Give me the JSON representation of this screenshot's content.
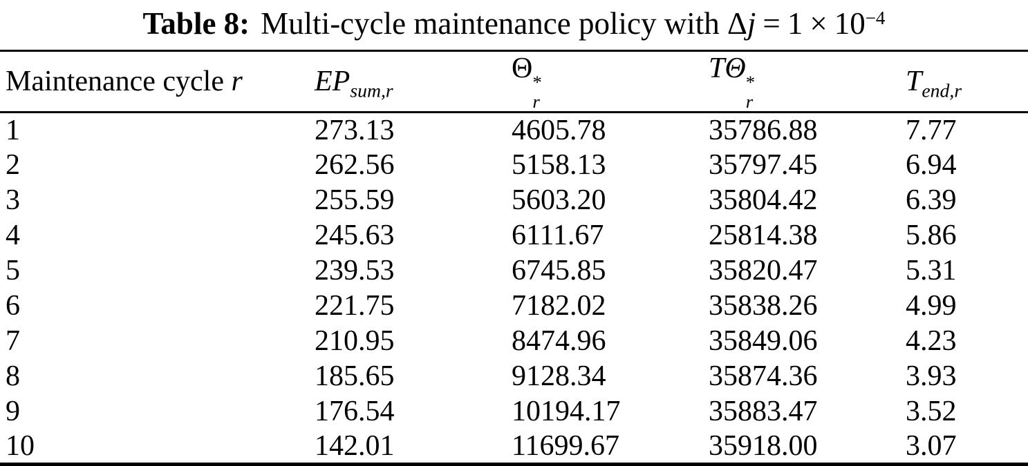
{
  "page": {
    "background_color": "#ffffff",
    "text_color": "#000000"
  },
  "title": {
    "label": "Table 8:",
    "description": "Multi-cycle maintenance policy with",
    "math": {
      "delta": "Δ",
      "variable": "j",
      "equals": "=",
      "coefficient": "1",
      "times": "×",
      "base": "10",
      "exponent": "−4"
    }
  },
  "table": {
    "headers": {
      "col1": {
        "text": "Maintenance cycle",
        "var": "r"
      },
      "col2": {
        "base": "EP",
        "sub": "sum,r"
      },
      "col3": {
        "base": "Θ",
        "sup": "*",
        "sub": "r"
      },
      "col4": {
        "base": "TΘ",
        "sup": "*",
        "sub": "r"
      },
      "col5": {
        "base": "T",
        "sub": "end,r"
      }
    },
    "rows": [
      [
        "1",
        "273.13",
        "4605.78",
        "35786.88",
        "7.77"
      ],
      [
        "2",
        "262.56",
        "5158.13",
        "35797.45",
        "6.94"
      ],
      [
        "3",
        "255.59",
        "5603.20",
        "35804.42",
        "6.39"
      ],
      [
        "4",
        "245.63",
        "6111.67",
        "25814.38",
        "5.86"
      ],
      [
        "5",
        "239.53",
        "6745.85",
        "35820.47",
        "5.31"
      ],
      [
        "6",
        "221.75",
        "7182.02",
        "35838.26",
        "4.99"
      ],
      [
        "7",
        "210.95",
        "8474.96",
        "35849.06",
        "4.23"
      ],
      [
        "8",
        "185.65",
        "9128.34",
        "35874.36",
        "3.93"
      ],
      [
        "9",
        "176.54",
        "10194.17",
        "35883.47",
        "3.52"
      ],
      [
        "10",
        "142.01",
        "11699.67",
        "35918.00",
        "3.07"
      ]
    ]
  }
}
